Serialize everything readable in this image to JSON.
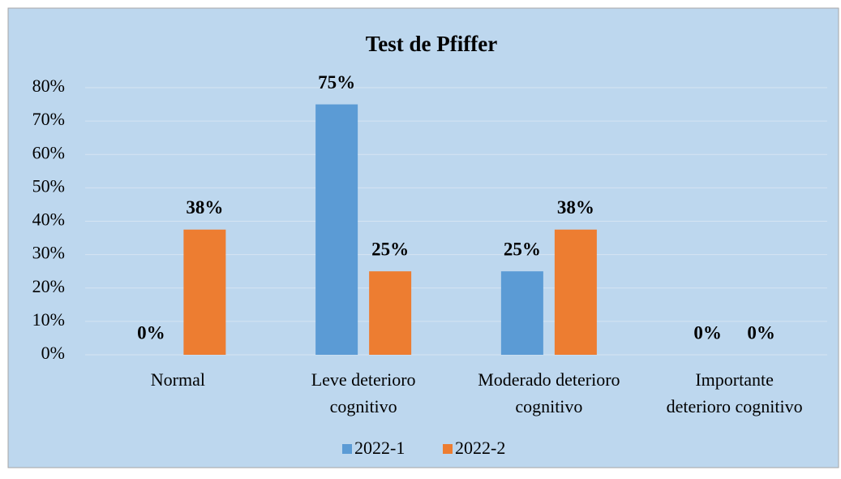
{
  "chart_data": {
    "type": "bar",
    "title": "Test de Pfiffer",
    "categories": [
      [
        "Normal"
      ],
      [
        "Leve deterioro",
        "cognitivo"
      ],
      [
        "Moderado deterioro",
        "cognitivo"
      ],
      [
        "Importante",
        "deterioro cognitivo"
      ]
    ],
    "series": [
      {
        "name": "2022-1",
        "color": "#5b9bd5",
        "values": [
          0,
          75,
          25,
          0
        ],
        "value_labels": [
          "0%",
          "75%",
          "25%",
          "0%"
        ]
      },
      {
        "name": "2022-2",
        "color": "#ed7d31",
        "values": [
          37.5,
          25,
          37.5,
          0
        ],
        "value_labels": [
          "38%",
          "25%",
          "38%",
          "0%"
        ]
      }
    ],
    "ylim": [
      0,
      80
    ],
    "yticks": [
      {
        "value": 0,
        "label": "0%"
      },
      {
        "value": 10,
        "label": "10%"
      },
      {
        "value": 20,
        "label": "20%"
      },
      {
        "value": 30,
        "label": "30%"
      },
      {
        "value": 40,
        "label": "40%"
      },
      {
        "value": 50,
        "label": "50%"
      },
      {
        "value": 60,
        "label": "60%"
      },
      {
        "value": 70,
        "label": "70%"
      },
      {
        "value": 80,
        "label": "80%"
      }
    ],
    "grid": true,
    "legend": "bottom"
  }
}
